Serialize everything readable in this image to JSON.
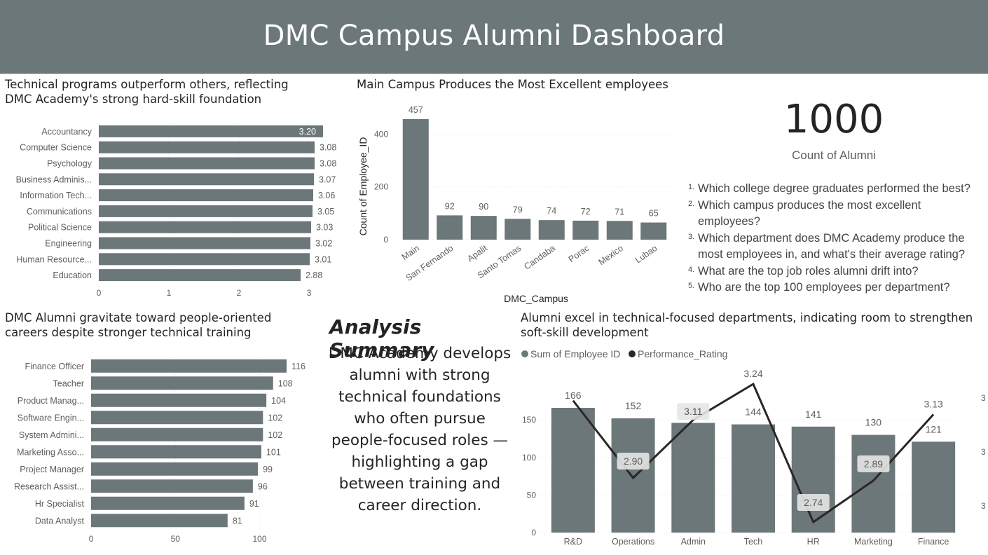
{
  "header": {
    "title": "DMC Campus Alumni Dashboard"
  },
  "colors": {
    "bar": "#6b7778",
    "line": "#2d2626",
    "header_bg": "#6b7778"
  },
  "kpi": {
    "value": "1000",
    "label": "Count of Alumni"
  },
  "questions": [
    {
      "num": "1.",
      "text": "Which college degree graduates performed the best?"
    },
    {
      "num": "2.",
      "text": "Which campus produces the most excellent employees?"
    },
    {
      "num": "3.",
      "text": "Which department does DMC Academy produce the most employees in, and what's their average rating?"
    },
    {
      "num": "4.",
      "text": "What are the top job roles alumni drift into?"
    },
    {
      "num": "5.",
      "text": "Who are the top 100 employees per department?"
    }
  ],
  "summary": {
    "title": "Analysis Summary",
    "body": "DMC Academy develops alumni with strong technical foundations who often pursue people-focused roles — highlighting a gap between training and career direction."
  },
  "chart_data": [
    {
      "id": "degrees",
      "type": "bar",
      "orientation": "horizontal",
      "title": "Technical programs outperform others, reflecting DMC Academy's strong hard-skill foundation",
      "categories": [
        "Accountancy",
        "Computer Science",
        "Psychology",
        "Business Adminis...",
        "Information Tech...",
        "Communications",
        "Political Science",
        "Engineering",
        "Human Resource...",
        "Education"
      ],
      "values": [
        3.2,
        3.08,
        3.08,
        3.07,
        3.06,
        3.05,
        3.03,
        3.02,
        3.01,
        2.88
      ],
      "data_labels": [
        "3.20",
        "3.08",
        "3.08",
        "3.07",
        "3.06",
        "3.05",
        "3.03",
        "3.02",
        "3.01",
        "2.88"
      ],
      "xlim": [
        0,
        3.35
      ],
      "ticks": [
        "0",
        "1",
        "2",
        "3"
      ],
      "grid": true
    },
    {
      "id": "campus",
      "type": "bar",
      "title": "Main Campus Produces the Most Excellent employees",
      "xlabel": "DMC_Campus",
      "ylabel": "Count of Employee_ID",
      "categories": [
        "Main",
        "San Fernando",
        "Apalit",
        "Santo Tomas",
        "Candaba",
        "Porac",
        "Mexico",
        "Lubao"
      ],
      "values": [
        457,
        92,
        90,
        79,
        74,
        72,
        71,
        65
      ],
      "ylim": [
        0,
        457
      ],
      "ticks": [
        "0",
        "200",
        "400"
      ],
      "grid": true
    },
    {
      "id": "roles",
      "type": "bar",
      "orientation": "horizontal",
      "title": "DMC Alumni gravitate toward people-oriented careers despite stronger technical training",
      "categories": [
        "Finance Officer",
        "Teacher",
        "Product Manag...",
        "Software Engin...",
        "System Admini...",
        "Marketing Asso...",
        "Project Manager",
        "Research Assist...",
        "Hr Specialist",
        "Data Analyst"
      ],
      "values": [
        116,
        108,
        104,
        102,
        102,
        101,
        99,
        96,
        91,
        81
      ],
      "xlim": [
        0,
        116
      ],
      "ticks": [
        "0",
        "50",
        "100"
      ],
      "grid": true
    },
    {
      "id": "departments",
      "type": "bar",
      "title": "Alumni excel in technical-focused departments, indicating room to strengthen soft-skill development",
      "categories": [
        "R&D",
        "Operations",
        "Admin",
        "Tech",
        "HR",
        "Marketing",
        "Finance"
      ],
      "series": [
        {
          "name": "Sum of Employee ID",
          "type": "bar",
          "values": [
            166,
            152,
            146,
            144,
            141,
            130,
            121
          ]
        },
        {
          "name": "Performance_Rating",
          "type": "line",
          "values": [
            3.18,
            2.9,
            3.11,
            3.24,
            2.74,
            2.89,
            3.13
          ],
          "data_labels": [
            "",
            "2.90",
            "3.11",
            "3.24",
            "2.74",
            "2.89",
            "3.13"
          ]
        }
      ],
      "ylim": [
        0,
        166
      ],
      "ticks": [
        "0",
        "50",
        "100",
        "150"
      ],
      "y2_ticks": [
        "3",
        "3",
        "3"
      ],
      "grid": true
    }
  ]
}
